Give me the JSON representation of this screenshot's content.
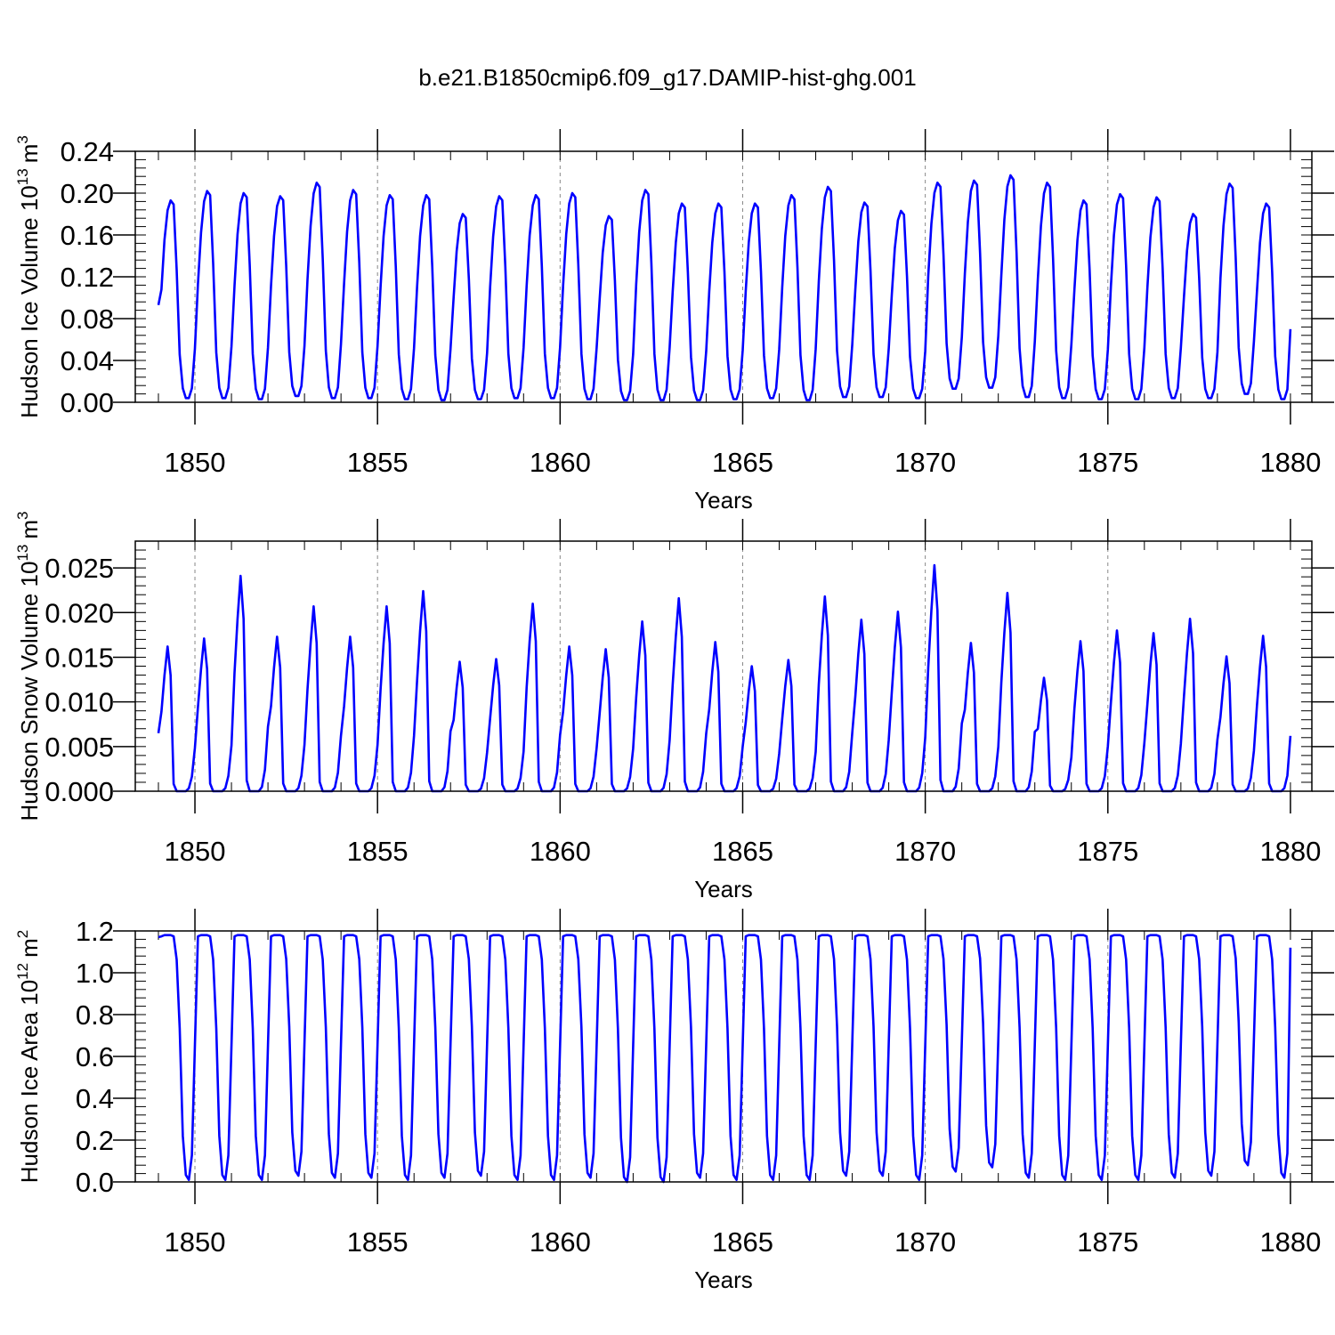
{
  "title": "b.e21.B1850cmip6.f09_g17.DAMIP-hist-ghg.001",
  "colors": {
    "line": "#0000ff",
    "axis": "#000000",
    "grid": "#888888",
    "background": "#ffffff"
  },
  "chart_data": [
    {
      "type": "line",
      "ylabel": "Hudson Ice Volume 10",
      "yunit_exp": "13",
      "yunit": "m",
      "yunit_sup": "3",
      "xlabel": "Years",
      "xlim": [
        1849,
        1880
      ],
      "ylim": [
        0,
        0.24
      ],
      "yticks": [
        0.0,
        0.04,
        0.08,
        0.12,
        0.16,
        0.2,
        0.24
      ],
      "ytick_labels": [
        "0.00",
        "0.04",
        "0.08",
        "0.12",
        "0.16",
        "0.20",
        "0.24"
      ],
      "xticks": [
        1850,
        1855,
        1860,
        1865,
        1870,
        1875,
        1880
      ],
      "xtick_labels": [
        "1850",
        "1855",
        "1860",
        "1865",
        "1870",
        "1875",
        "1880"
      ],
      "grid": "vertical dashed at major x ticks",
      "series": [
        {
          "name": "Hudson Ice Volume",
          "cycle_minima": [
            0.004,
            0.004,
            0.003,
            0.006,
            0.004,
            0.004,
            0.003,
            0.002,
            0.003,
            0.004,
            0.004,
            0.003,
            0.002,
            0.002,
            0.002,
            0.003,
            0.004,
            0.002,
            0.005,
            0.005,
            0.004,
            0.013,
            0.014,
            0.005,
            0.004,
            0.003,
            0.003,
            0.004,
            0.004,
            0.008,
            0.003
          ],
          "cycle_maxima": [
            0.193,
            0.202,
            0.2,
            0.197,
            0.21,
            0.203,
            0.198,
            0.198,
            0.18,
            0.197,
            0.198,
            0.2,
            0.178,
            0.203,
            0.19,
            0.19,
            0.19,
            0.198,
            0.206,
            0.191,
            0.183,
            0.21,
            0.212,
            0.217,
            0.21,
            0.193,
            0.199,
            0.196,
            0.18,
            0.209,
            0.19
          ],
          "start_value": 0.093,
          "end_value": 0.07
        }
      ]
    },
    {
      "type": "line",
      "ylabel": "Hudson Snow Volume 10",
      "yunit_exp": "13",
      "yunit": "m",
      "yunit_sup": "3",
      "xlabel": "Years",
      "xlim": [
        1849,
        1880
      ],
      "ylim": [
        0,
        0.028
      ],
      "yticks": [
        0.0,
        0.005,
        0.01,
        0.015,
        0.02,
        0.025
      ],
      "ytick_labels": [
        "0.000",
        "0.005",
        "0.010",
        "0.015",
        "0.020",
        "0.025"
      ],
      "xticks": [
        1850,
        1855,
        1860,
        1865,
        1870,
        1875,
        1880
      ],
      "xtick_labels": [
        "1850",
        "1855",
        "1860",
        "1865",
        "1870",
        "1875",
        "1880"
      ],
      "grid": "vertical dashed at major x ticks",
      "series": [
        {
          "name": "Hudson Snow Volume",
          "cycle_minima": [
            0,
            0,
            0,
            0,
            0,
            0,
            0,
            0,
            0,
            0,
            0,
            0,
            0,
            0,
            0,
            0,
            0,
            0,
            0,
            0,
            0,
            0,
            0,
            0,
            0,
            0,
            0,
            0,
            0,
            0,
            0
          ],
          "cycle_maxima": [
            0.0162,
            0.0171,
            0.0241,
            0.0173,
            0.0207,
            0.0173,
            0.0207,
            0.0224,
            0.0145,
            0.0148,
            0.021,
            0.0162,
            0.0159,
            0.019,
            0.0216,
            0.0167,
            0.014,
            0.0147,
            0.0218,
            0.0192,
            0.0201,
            0.0253,
            0.0166,
            0.0222,
            0.0127,
            0.0168,
            0.018,
            0.0177,
            0.0193,
            0.0151,
            0.0174
          ],
          "start_value": 0.0065,
          "end_value": 0.0062
        }
      ]
    },
    {
      "type": "line",
      "ylabel": "Hudson Ice Area 10",
      "yunit_exp": "12",
      "yunit": "m",
      "yunit_sup": "2",
      "xlabel": "Years",
      "xlim": [
        1849,
        1880
      ],
      "ylim": [
        0,
        1.2
      ],
      "yticks": [
        0.0,
        0.2,
        0.4,
        0.6,
        0.8,
        1.0,
        1.2
      ],
      "ytick_labels": [
        "0.0",
        "0.2",
        "0.4",
        "0.6",
        "0.8",
        "1.0",
        "1.2"
      ],
      "xticks": [
        1850,
        1855,
        1860,
        1865,
        1870,
        1875,
        1880
      ],
      "xtick_labels": [
        "1850",
        "1855",
        "1860",
        "1865",
        "1870",
        "1875",
        "1880"
      ],
      "grid": "vertical dashed at major x ticks",
      "series": [
        {
          "name": "Hudson Ice Area",
          "cycle_minima": [
            0.01,
            0.01,
            0.01,
            0.03,
            0.02,
            0.02,
            0.01,
            0.02,
            0.03,
            0.01,
            0.01,
            0.02,
            0.0,
            0.0,
            0.02,
            0.01,
            0.01,
            0.01,
            0.03,
            0.03,
            0.01,
            0.05,
            0.07,
            0.02,
            0.01,
            0.01,
            0.01,
            0.02,
            0.03,
            0.08,
            0.02
          ],
          "cycle_maxima": [
            1.18,
            1.18,
            1.18,
            1.18,
            1.18,
            1.18,
            1.18,
            1.18,
            1.18,
            1.18,
            1.18,
            1.18,
            1.18,
            1.18,
            1.18,
            1.18,
            1.18,
            1.18,
            1.18,
            1.18,
            1.18,
            1.18,
            1.18,
            1.18,
            1.18,
            1.18,
            1.18,
            1.18,
            1.18,
            1.18,
            1.18
          ],
          "start_value": 1.17,
          "end_value": 1.12
        }
      ]
    }
  ]
}
